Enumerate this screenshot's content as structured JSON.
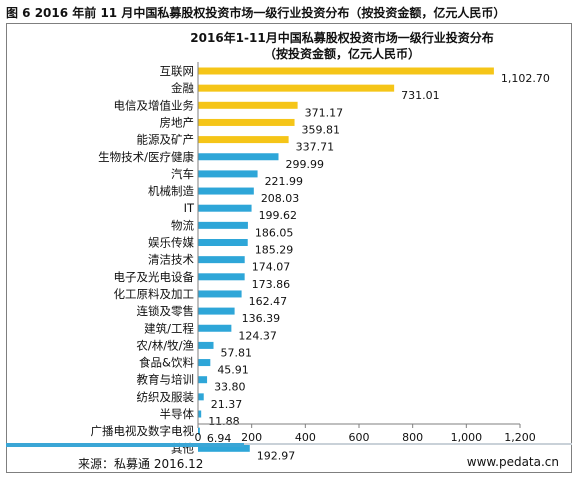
{
  "figure_caption": "图 6 2016 年前 11 月中国私募股权投资市场一级行业投资分布（按投资金额，亿元人民币）",
  "source_text": "来源：私募通 2016.12",
  "website_text": "www.pedata.cn",
  "colors": {
    "highlight": "#f5c518",
    "normal": "#2ea6d8",
    "axis": "#7f7f7f",
    "footer_accent": "#3aa6d6"
  },
  "chart_data": {
    "type": "bar",
    "orientation": "horizontal",
    "title": "2016年1-11月中国私募股权投资市场一级行业投资分布",
    "subtitle": "（按投资金额，亿元人民币）",
    "categories": [
      "互联网",
      "金融",
      "电信及增值业务",
      "房地产",
      "能源及矿产",
      "生物技术/医疗健康",
      "汽车",
      "机械制造",
      "IT",
      "物流",
      "娱乐传媒",
      "清洁技术",
      "电子及光电设备",
      "化工原料及加工",
      "连锁及零售",
      "建筑/工程",
      "农/林/牧/渔",
      "食品&饮料",
      "教育与培训",
      "纺织及服装",
      "半导体",
      "广播电视及数字电视",
      "其他"
    ],
    "values": [
      1102.7,
      731.01,
      371.17,
      359.81,
      337.71,
      299.99,
      221.99,
      208.03,
      199.62,
      186.05,
      185.29,
      174.07,
      173.86,
      162.47,
      136.39,
      124.37,
      57.81,
      45.91,
      33.8,
      21.37,
      11.88,
      6.94,
      192.97
    ],
    "value_labels": [
      "1,102.70",
      "731.01",
      "371.17",
      "359.81",
      "337.71",
      "299.99",
      "221.99",
      "208.03",
      "199.62",
      "186.05",
      "185.29",
      "174.07",
      "173.86",
      "162.47",
      "136.39",
      "124.37",
      "57.81",
      "45.91",
      "33.80",
      "21.37",
      "11.88",
      "6.94",
      "192.97"
    ],
    "highlighted": [
      true,
      true,
      true,
      true,
      true,
      false,
      false,
      false,
      false,
      false,
      false,
      false,
      false,
      false,
      false,
      false,
      false,
      false,
      false,
      false,
      false,
      false,
      false
    ],
    "x_ticks": [
      0,
      200,
      400,
      600,
      800,
      1000,
      1200
    ],
    "x_tick_labels": [
      "0",
      "200",
      "400",
      "600",
      "800",
      "1,000",
      "1,200"
    ],
    "xlim": [
      0,
      1200
    ],
    "xlabel": "",
    "ylabel": "",
    "grid": false,
    "legend": "none"
  }
}
